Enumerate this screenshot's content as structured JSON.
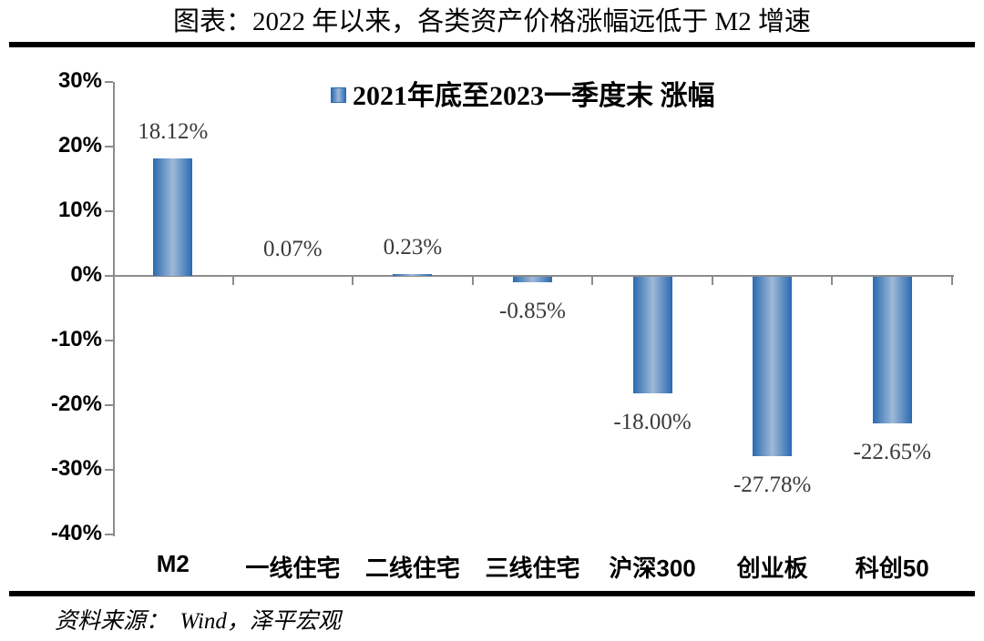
{
  "title": "图表：2022 年以来，各类资产价格涨幅远低于 M2 增速",
  "legend": {
    "label": "2021年底至2023一季度末 涨幅"
  },
  "source": "资料来源：  Wind，泽平宏观",
  "colors": {
    "bar_edge": "#2A6AB0",
    "bar_center": "#9FB9D8",
    "axis": "#8C8C8C",
    "data_label": "#3A3A3A",
    "text": "#000000",
    "rule": "#000000"
  },
  "chart_data": {
    "type": "bar",
    "title": "图表：2022 年以来，各类资产价格涨幅远低于 M2 增速",
    "legend": "2021年底至2023一季度末 涨幅",
    "legend_position": "top-center",
    "categories": [
      "M2",
      "一线住宅",
      "二线住宅",
      "三线住宅",
      "沪深300",
      "创业板",
      "科创50"
    ],
    "values": [
      18.12,
      0.07,
      0.23,
      -0.85,
      -18.0,
      -27.78,
      -22.65
    ],
    "data_labels": [
      "18.12%",
      "0.07%",
      "0.23%",
      "-0.85%",
      "-18.00%",
      "-27.78%",
      "-22.65%"
    ],
    "xlabel": "",
    "ylabel": "",
    "ylim": [
      -40,
      30
    ],
    "y_tick_values": [
      30,
      20,
      10,
      0,
      -10,
      -20,
      -30,
      -40
    ],
    "y_tick_labels": [
      "30%",
      "20%",
      "10%",
      "0%",
      "-10%",
      "-20%",
      "-30%",
      "-40%"
    ],
    "grid": false,
    "unit": "%"
  }
}
